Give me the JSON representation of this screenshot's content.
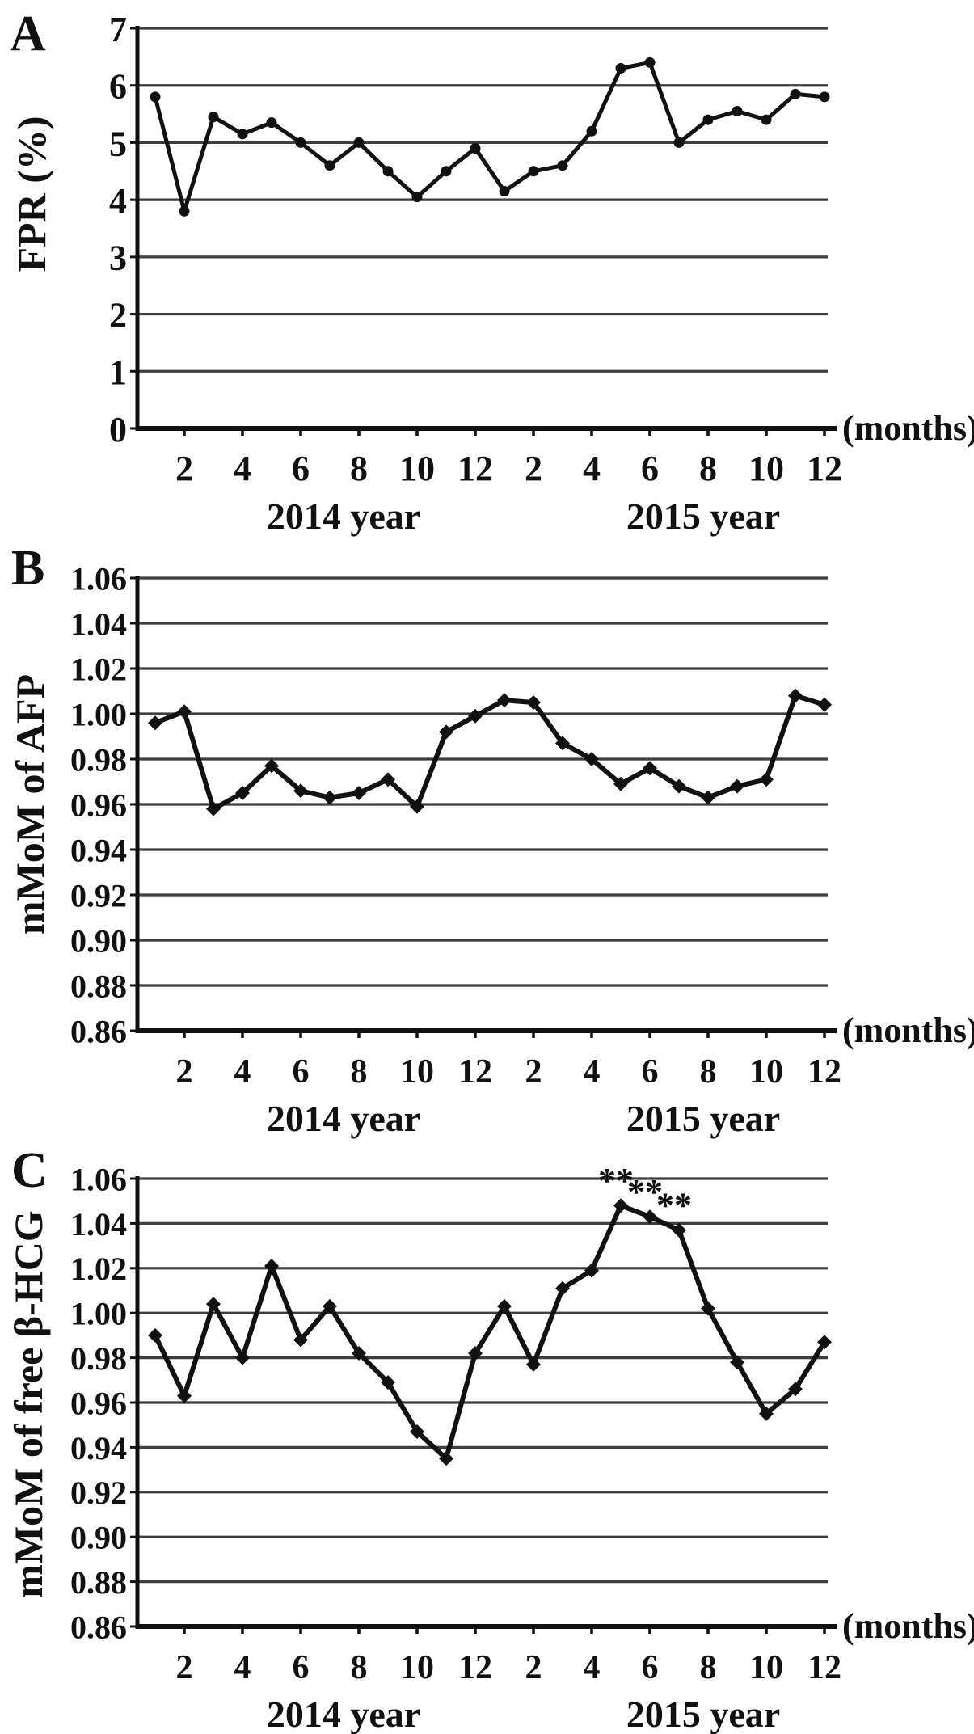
{
  "figure": {
    "background": "#ffffff",
    "ink_color": "#111111",
    "grid_color": "#3d3d3d",
    "annotation_color": "#2a2a2a",
    "months_axis_label": "(months)",
    "x_tick_labels": [
      "2",
      "4",
      "6",
      "8",
      "10",
      "12",
      "2",
      "4",
      "6",
      "8",
      "10",
      "12"
    ],
    "year_labels": [
      "2014 year",
      "2015 year"
    ]
  },
  "chart_data": [
    {
      "panel_label": "A",
      "type": "line",
      "ylabel": "FPR (%)",
      "xlabel": "(months)",
      "ylim": [
        0,
        7
      ],
      "ytick_labels": [
        "7",
        "6",
        "5",
        "4",
        "3",
        "2",
        "1",
        "0"
      ],
      "x": [
        1,
        2,
        3,
        4,
        5,
        6,
        7,
        8,
        9,
        10,
        11,
        12,
        1,
        2,
        3,
        4,
        5,
        6,
        7,
        8,
        9,
        10,
        11,
        12
      ],
      "marker": "circle",
      "series": [
        {
          "name": "FPR",
          "values": [
            5.8,
            3.8,
            5.45,
            5.15,
            5.35,
            5.0,
            4.6,
            5.0,
            4.5,
            4.05,
            4.5,
            4.9,
            4.15,
            4.5,
            4.6,
            5.2,
            6.3,
            6.4,
            5.0,
            5.4,
            5.55,
            5.4,
            5.85,
            5.8
          ]
        }
      ],
      "annotations": []
    },
    {
      "panel_label": "B",
      "type": "line",
      "ylabel": "mMoM of AFP",
      "xlabel": "(months)",
      "ylim": [
        0.86,
        1.06
      ],
      "ytick_labels": [
        "1.06",
        "1.04",
        "1.02",
        "1.00",
        "0.98",
        "0.96",
        "0.94",
        "0.92",
        "0.90",
        "0.88",
        "0.86"
      ],
      "x": [
        1,
        2,
        3,
        4,
        5,
        6,
        7,
        8,
        9,
        10,
        11,
        12,
        1,
        2,
        3,
        4,
        5,
        6,
        7,
        8,
        9,
        10,
        11,
        12
      ],
      "marker": "diamond",
      "series": [
        {
          "name": "mMoM of AFP",
          "values": [
            0.996,
            1.001,
            0.958,
            0.965,
            0.977,
            0.966,
            0.963,
            0.965,
            0.971,
            0.959,
            0.992,
            0.999,
            1.006,
            1.005,
            0.987,
            0.98,
            0.969,
            0.976,
            0.968,
            0.963,
            0.968,
            0.971,
            1.008,
            1.004
          ]
        }
      ],
      "annotations": []
    },
    {
      "panel_label": "C",
      "type": "line",
      "ylabel": "mMoM of free β-HCG",
      "xlabel": "(months)",
      "ylim": [
        0.86,
        1.06
      ],
      "ytick_labels": [
        "1.06",
        "1.04",
        "1.02",
        "1.00",
        "0.98",
        "0.96",
        "0.94",
        "0.92",
        "0.90",
        "0.88",
        "0.86"
      ],
      "x": [
        1,
        2,
        3,
        4,
        5,
        6,
        7,
        8,
        9,
        10,
        11,
        12,
        1,
        2,
        3,
        4,
        5,
        6,
        7,
        8,
        9,
        10,
        11,
        12
      ],
      "marker": "diamond",
      "series": [
        {
          "name": "mMoM of free β-HCG",
          "values": [
            0.99,
            0.963,
            1.004,
            0.98,
            1.021,
            0.988,
            1.003,
            0.982,
            0.969,
            0.947,
            0.935,
            0.982,
            1.003,
            0.977,
            1.011,
            1.019,
            1.048,
            1.043,
            1.037,
            1.002,
            0.978,
            0.955,
            0.966,
            0.987
          ]
        }
      ],
      "annotations": [
        {
          "index": 16,
          "text": "**"
        },
        {
          "index": 17,
          "text": "**"
        },
        {
          "index": 18,
          "text": "**"
        }
      ]
    }
  ]
}
